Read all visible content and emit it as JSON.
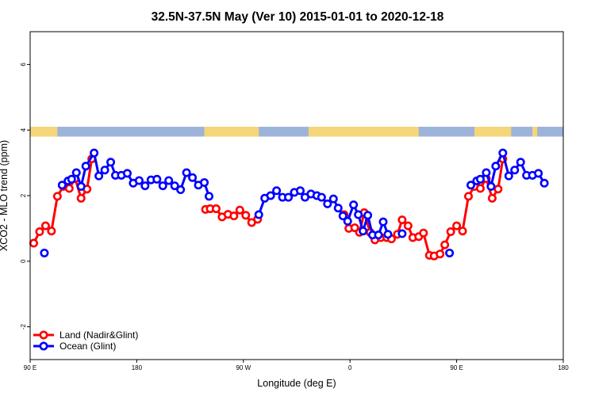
{
  "chart_data": {
    "type": "line",
    "title": "32.5N-37.5N May (Ver 10)   2015-01-01 to 2020-12-18",
    "xlabel": "Longitude (deg E)",
    "ylabel": "XCO2 - MLO trend (ppm)",
    "x_ticks": [
      {
        "label": "90 E",
        "value": 90
      },
      {
        "label": "180",
        "value": 180
      },
      {
        "label": "90 W",
        "value": 270
      },
      {
        "label": "0",
        "value": 360
      },
      {
        "label": "90 E",
        "value": 450
      },
      {
        "label": "180",
        "value": 540
      }
    ],
    "y_ticks": [
      "-2",
      "0",
      "2",
      "4",
      "6"
    ],
    "xlim": [
      90,
      540
    ],
    "ylim": [
      -3,
      7
    ],
    "grid": false,
    "legend_position": "bottom-left",
    "land_mask_band": {
      "y_range": [
        3.8,
        4.1
      ],
      "ocean_color": "#9db3d9",
      "land_color": "#f5d77a",
      "land_segments": [
        [
          90,
          113
        ],
        [
          237,
          283
        ],
        [
          325,
          418
        ],
        [
          465,
          496
        ],
        [
          514,
          518
        ]
      ]
    },
    "series": [
      {
        "name": "Land (Nadir&Glint)",
        "color": "#ff0000",
        "points": [
          [
            93,
            0.55
          ],
          [
            98,
            0.9
          ],
          [
            103,
            1.08
          ],
          [
            108,
            0.92
          ],
          [
            113,
            1.98
          ],
          [
            118,
            2.28
          ],
          [
            123,
            2.22
          ],
          [
            128,
            2.52
          ],
          [
            133,
            1.92
          ],
          [
            138,
            2.2
          ],
          [
            142,
            3.12
          ],
          null,
          [
            238,
            1.58
          ],
          [
            242,
            1.6
          ],
          [
            247,
            1.6
          ],
          [
            252,
            1.35
          ],
          [
            257,
            1.43
          ],
          [
            262,
            1.38
          ],
          [
            267,
            1.56
          ],
          [
            272,
            1.4
          ],
          [
            277,
            1.18
          ],
          [
            282,
            1.28
          ],
          null,
          [
            355,
            1.42
          ],
          [
            359,
            1.0
          ],
          [
            364,
            1.02
          ],
          [
            368,
            0.88
          ],
          [
            372,
            1.48
          ],
          [
            377,
            0.88
          ],
          [
            381,
            0.65
          ],
          [
            386,
            0.72
          ],
          [
            391,
            0.72
          ],
          [
            395,
            0.68
          ],
          [
            400,
            0.82
          ],
          [
            404,
            1.26
          ],
          [
            409,
            1.08
          ],
          [
            413,
            0.72
          ],
          [
            418,
            0.75
          ],
          [
            422,
            0.86
          ],
          [
            427,
            0.18
          ],
          [
            431,
            0.16
          ],
          [
            436,
            0.22
          ],
          [
            440,
            0.5
          ],
          [
            445,
            0.9
          ],
          [
            450,
            1.08
          ],
          [
            455,
            0.92
          ],
          [
            460,
            1.98
          ],
          [
            465,
            2.28
          ],
          [
            470,
            2.22
          ],
          [
            475,
            2.52
          ],
          [
            480,
            1.92
          ],
          [
            485,
            2.2
          ],
          [
            489,
            3.12
          ]
        ]
      },
      {
        "name": "Ocean (Glint)",
        "color": "#0000ff",
        "points": [
          [
            102,
            0.25
          ],
          null,
          [
            117,
            2.32
          ],
          [
            122,
            2.45
          ],
          [
            125,
            2.5
          ],
          [
            129,
            2.7
          ],
          [
            133,
            2.28
          ],
          [
            137,
            2.9
          ],
          [
            144,
            3.3
          ],
          [
            148,
            2.6
          ],
          [
            153,
            2.78
          ],
          [
            158,
            3.02
          ],
          [
            162,
            2.62
          ],
          [
            167,
            2.62
          ],
          [
            172,
            2.68
          ],
          [
            177,
            2.38
          ],
          [
            182,
            2.46
          ],
          [
            187,
            2.3
          ],
          [
            192,
            2.48
          ],
          [
            197,
            2.5
          ],
          [
            202,
            2.3
          ],
          [
            207,
            2.46
          ],
          [
            212,
            2.3
          ],
          [
            217,
            2.18
          ],
          [
            222,
            2.7
          ],
          [
            227,
            2.55
          ],
          [
            232,
            2.32
          ],
          [
            237,
            2.4
          ],
          [
            241,
            1.98
          ],
          null,
          [
            283,
            1.42
          ],
          [
            288,
            1.92
          ],
          [
            293,
            2.0
          ],
          [
            298,
            2.15
          ],
          [
            303,
            1.95
          ],
          [
            308,
            1.95
          ],
          [
            313,
            2.1
          ],
          [
            318,
            2.15
          ],
          [
            322,
            1.95
          ],
          [
            327,
            2.05
          ],
          [
            332,
            2.0
          ],
          [
            336,
            1.95
          ],
          [
            341,
            1.75
          ],
          [
            346,
            1.9
          ],
          [
            350,
            1.62
          ],
          [
            354,
            1.38
          ],
          [
            358,
            1.22
          ],
          [
            363,
            1.72
          ],
          [
            367,
            1.42
          ],
          [
            371,
            0.92
          ],
          [
            375,
            1.4
          ],
          [
            379,
            0.8
          ],
          [
            384,
            0.8
          ],
          [
            388,
            1.2
          ],
          [
            392,
            0.82
          ],
          null,
          [
            404,
            0.84
          ],
          null,
          [
            444,
            0.25
          ],
          null,
          [
            462,
            2.32
          ],
          [
            467,
            2.45
          ],
          [
            470,
            2.5
          ],
          [
            475,
            2.7
          ],
          [
            479,
            2.28
          ],
          [
            483,
            2.9
          ],
          [
            489,
            3.3
          ],
          [
            494,
            2.6
          ],
          [
            499,
            2.78
          ],
          [
            504,
            3.02
          ],
          [
            509,
            2.62
          ],
          [
            514,
            2.62
          ],
          [
            519,
            2.68
          ],
          [
            524,
            2.38
          ]
        ]
      }
    ]
  }
}
